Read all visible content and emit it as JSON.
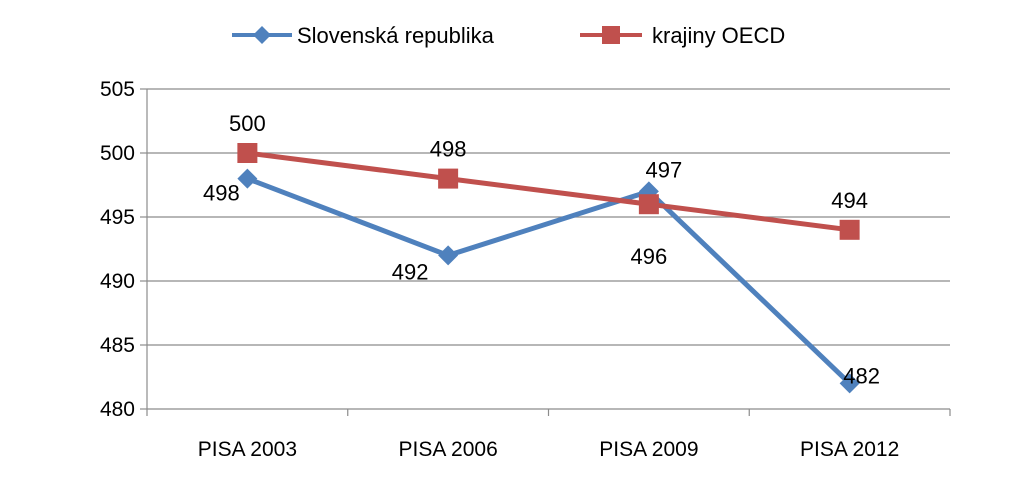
{
  "chart_data": {
    "type": "line",
    "title": "",
    "xlabel": "",
    "ylabel": "",
    "categories": [
      "PISA 2003",
      "PISA 2006",
      "PISA 2009",
      "PISA 2012"
    ],
    "ylim": [
      480,
      505
    ],
    "yticks": [
      "480",
      "485",
      "490",
      "495",
      "500",
      "505"
    ],
    "grid": "horizontal",
    "legend_position": "top",
    "series": [
      {
        "name": "Slovenská republika",
        "values": [
          498,
          492,
          497,
          482
        ],
        "labels": [
          "498",
          "492",
          "497",
          "482"
        ],
        "color": "#4F81BD",
        "marker": "diamond"
      },
      {
        "name": "krajiny OECD",
        "values": [
          500,
          498,
          496,
          494
        ],
        "labels": [
          "500",
          "498",
          "496",
          "494"
        ],
        "color": "#C0504D",
        "marker": "square"
      }
    ]
  }
}
